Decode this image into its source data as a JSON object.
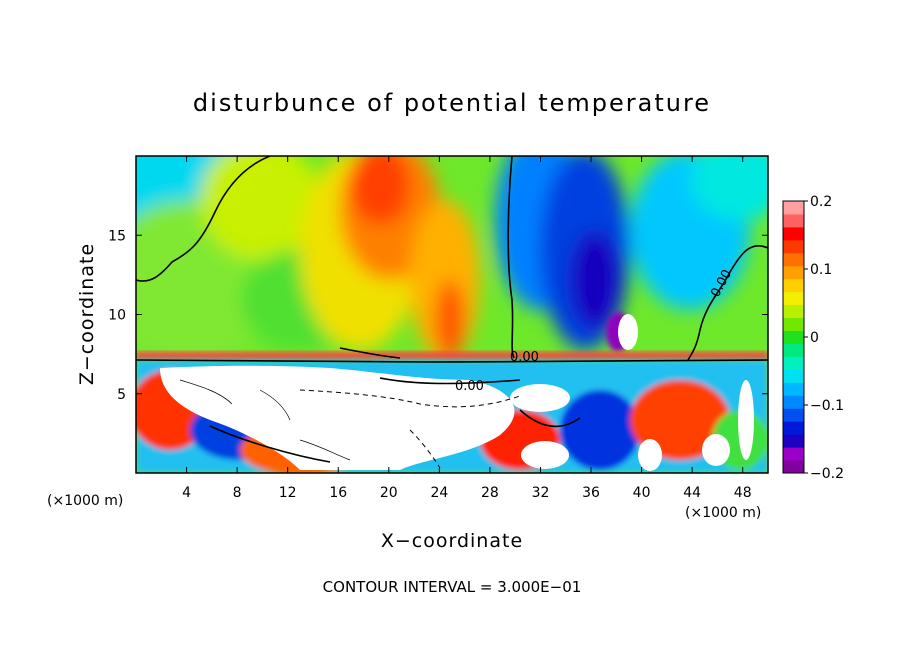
{
  "chart_data": {
    "type": "heatmap",
    "title": "disturbunce of potential temperature",
    "xlabel": "X−coordinate",
    "ylabel": "Z−coordinate",
    "x_unit": "(×1000 m)",
    "x_unit_right": "(×1000 m)",
    "xlim": [
      0,
      50
    ],
    "ylim": [
      0,
      20
    ],
    "x_ticks": [
      4,
      8,
      12,
      16,
      20,
      24,
      28,
      32,
      36,
      40,
      44,
      48
    ],
    "x_tick_labels": [
      "4",
      "8",
      "12",
      "16",
      "20",
      "24",
      "28",
      "32",
      "36",
      "40",
      "44",
      "48"
    ],
    "y_ticks": [
      5,
      10,
      15
    ],
    "y_tick_labels": [
      "5",
      "10",
      "15"
    ],
    "colorbar": {
      "min": -0.2,
      "max": 0.2,
      "ticks": [
        0.2,
        0.1,
        0,
        -0.1,
        -0.2
      ],
      "tick_labels": [
        "0.2",
        "0.1",
        "0",
        "−0.1",
        "−0.2"
      ],
      "colors": [
        "#8000a0",
        "#9a00c8",
        "#1e00c0",
        "#0018d8",
        "#0050f0",
        "#0088ff",
        "#00b8ff",
        "#00e0f0",
        "#00f0c0",
        "#00e880",
        "#20e020",
        "#70e800",
        "#b8f000",
        "#f0f000",
        "#ffd000",
        "#ffa000",
        "#ff7000",
        "#ff3a00",
        "#ff0000",
        "#ff6060",
        "#ffa0a0"
      ]
    },
    "contour_labels": [
      "0.00",
      "0.00",
      "0.00"
    ],
    "contour_interval_text": "CONTOUR INTERVAL = 3.000E−01"
  }
}
